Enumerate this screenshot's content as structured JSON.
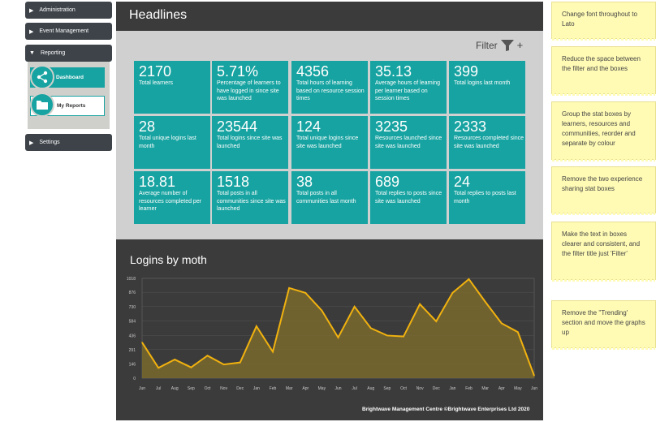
{
  "sidebar": {
    "items": [
      {
        "label": "Administration"
      },
      {
        "label": "Event Management"
      },
      {
        "label": "Reporting"
      },
      {
        "label": "Settings"
      }
    ],
    "subitems": [
      {
        "label": "Dashboard"
      },
      {
        "label": "My Reports"
      }
    ]
  },
  "headlines": {
    "title": "Headlines",
    "filter_label": "Filter",
    "filter_add": "+",
    "stats": [
      {
        "value": "2170",
        "label": "Total learners"
      },
      {
        "value": "5.71%",
        "label": "Percentage of learners to have logged in since site was launched"
      },
      {
        "value": "4356",
        "label": "Total hours of learning based on resource session times"
      },
      {
        "value": "35.13",
        "label": "Average hours of learning per learner based on session times"
      },
      {
        "value": "399",
        "label": "Total logins last month"
      },
      {
        "value": "28",
        "label": "Total unique logins last month"
      },
      {
        "value": "23544",
        "label": "Total logins since site was launched"
      },
      {
        "value": "124",
        "label": "Total unique logins since site was launched"
      },
      {
        "value": "3235",
        "label": "Resources launched since site was launched"
      },
      {
        "value": "2333",
        "label": "Resources completed since site was launched"
      },
      {
        "value": "18.81",
        "label": "Average number of resources completed per learner"
      },
      {
        "value": "1518",
        "label": "Total posts in all communities since site was launched"
      },
      {
        "value": "38",
        "label": "Total posts in all communities last month"
      },
      {
        "value": "689",
        "label": "Total replies to posts since site was launched"
      },
      {
        "value": "24",
        "label": "Total replies to posts last month"
      }
    ]
  },
  "logins_chart": {
    "title": "Logins by moth",
    "footer": "Brightwave Management Centre ©Brightwave Enterprises Ltd 2020"
  },
  "chart_data": {
    "type": "area",
    "title": "Logins by moth",
    "categories": [
      "Jun",
      "Jul",
      "Aug",
      "Sep",
      "Oct",
      "Nov",
      "Dec",
      "Jan",
      "Feb",
      "Mar",
      "Apr",
      "May",
      "Jun",
      "Jul",
      "Aug",
      "Sep",
      "Oct",
      "Nov",
      "Dec",
      "Jan",
      "Feb",
      "Mar",
      "Apr",
      "May",
      "Jun"
    ],
    "values": [
      365,
      105,
      190,
      110,
      230,
      140,
      160,
      530,
      270,
      920,
      870,
      690,
      415,
      730,
      510,
      435,
      425,
      755,
      580,
      870,
      1010,
      780,
      560,
      470,
      25
    ],
    "ylim": [
      0,
      1018
    ],
    "yticks": [
      0,
      146,
      291,
      436,
      584,
      730,
      876,
      1018
    ],
    "color": "#f1b20f",
    "fill": "#7a6a2e"
  },
  "notes": [
    {
      "text": "Change font throughout to Lato"
    },
    {
      "text": "Reduce the space between the filter and the boxes"
    },
    {
      "text": "Group the stat boxes by learners, resources and communities, reorder and separate by colour"
    },
    {
      "text": "Remove the two experience sharing stat boxes"
    },
    {
      "text": "Make the text in boxes clearer and consistent, and the filter title just 'Filter'"
    },
    {
      "text": "Remove the ''Trending' section and move the graphs up"
    }
  ],
  "colors": {
    "teal": "#17a3a1",
    "dark": "#3b3b3b",
    "note": "#fffbb5"
  }
}
